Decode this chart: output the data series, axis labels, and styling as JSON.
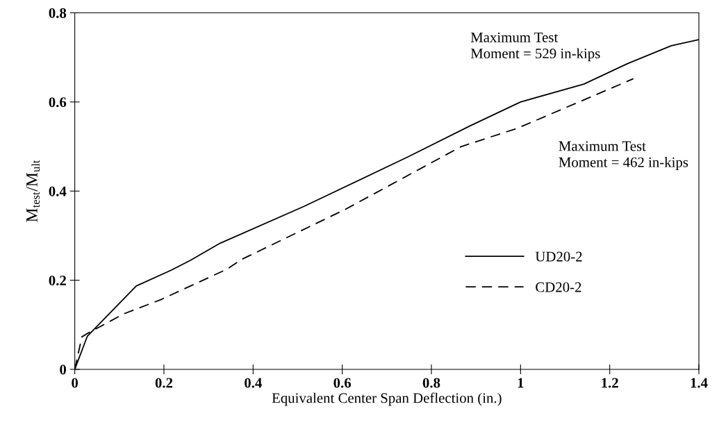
{
  "chart_data": {
    "type": "line",
    "xlabel": "Equivalent Center Span Deflection (in.)",
    "ylabel": "M$_{test}$/M$_{ult}$",
    "xlim": [
      0,
      1.4
    ],
    "xticks": [
      0,
      0.2,
      0.4,
      0.6,
      0.8,
      1,
      1.2,
      1.4
    ],
    "ylim": [
      0,
      0.8
    ],
    "yticks": [
      0,
      0.2,
      0.4,
      0.6,
      0.8
    ],
    "grid": false,
    "legend": "bottom right",
    "marker": "none",
    "series": [
      {
        "name": "UD20-2",
        "color": "#000000",
        "line_style": "solid",
        "x": [
          0,
          0.028,
          0.138,
          0.215,
          0.26,
          0.326,
          0.515,
          0.748,
          0.888,
          1.0,
          1.142,
          1.24,
          1.338,
          1.4
        ],
        "values": [
          0,
          0.074,
          0.187,
          0.222,
          0.245,
          0.283,
          0.366,
          0.477,
          0.547,
          0.6,
          0.64,
          0.686,
          0.726,
          0.74
        ]
      },
      {
        "name": "CD20-2",
        "color": "#000000",
        "line_style": "dashed",
        "x": [
          0,
          0.016,
          0.031,
          0.111,
          0.192,
          0.342,
          0.375,
          0.607,
          0.867,
          0.993,
          1.253
        ],
        "values": [
          0,
          0.073,
          0.082,
          0.125,
          0.156,
          0.225,
          0.247,
          0.359,
          0.5,
          0.541,
          0.652
        ]
      }
    ],
    "annotations": [
      "Maximum Test\nMoment = 529 in-kips",
      "Maximum Test\nMoment = 462 in-kips"
    ]
  }
}
